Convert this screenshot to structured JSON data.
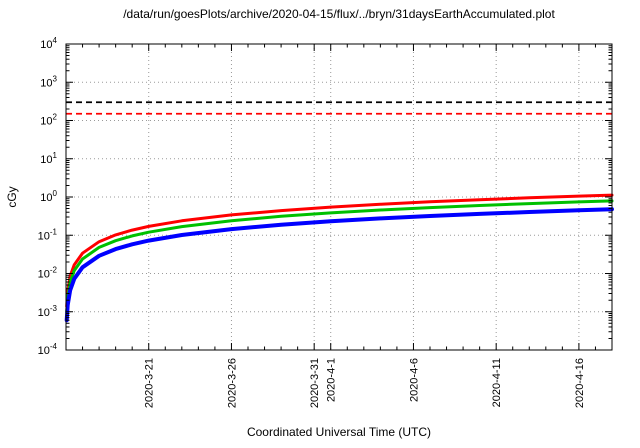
{
  "chart_data": {
    "type": "line",
    "title": "/data/run/goesPlots/archive/2020-04-15/flux/../bryn/31daysEarthAccumulated.plot",
    "xlabel": "Coordinated Universal Time (UTC)",
    "ylabel": "cGy",
    "y_scale": "log",
    "y_range_exponents": [
      -4,
      4
    ],
    "x_unit": "days since 2020-03-16",
    "x_range": [
      0,
      33
    ],
    "grid": "dotted major",
    "legend": "none",
    "x_ticks": [
      {
        "day": 5,
        "label": "2020-3-21"
      },
      {
        "day": 10,
        "label": "2020-3-26"
      },
      {
        "day": 15,
        "label": "2020-3-31"
      },
      {
        "day": 16,
        "label": "2020-4-1"
      },
      {
        "day": 21,
        "label": "2020-4-6"
      },
      {
        "day": 26,
        "label": "2020-4-11"
      },
      {
        "day": 31,
        "label": "2020-4-16"
      }
    ],
    "x": [
      0.04,
      0.1,
      0.25,
      0.5,
      1,
      2,
      3,
      4,
      5,
      7,
      10,
      13,
      16,
      19,
      22,
      25,
      28,
      31,
      33
    ],
    "series": [
      {
        "name": "red",
        "color": "#ff0000",
        "width": 3,
        "values": [
          0.0014,
          0.0034,
          0.0085,
          0.017,
          0.034,
          0.068,
          0.102,
          0.136,
          0.17,
          0.238,
          0.34,
          0.442,
          0.544,
          0.646,
          0.748,
          0.85,
          0.952,
          1.054,
          1.12
        ]
      },
      {
        "name": "green",
        "color": "#00c000",
        "width": 3,
        "values": [
          0.001,
          0.0024,
          0.006,
          0.012,
          0.024,
          0.048,
          0.072,
          0.096,
          0.12,
          0.168,
          0.24,
          0.312,
          0.384,
          0.456,
          0.528,
          0.6,
          0.672,
          0.744,
          0.79
        ]
      },
      {
        "name": "blue",
        "color": "#0000ff",
        "width": 4,
        "values": [
          0.0006,
          0.0015,
          0.0036,
          0.0073,
          0.0145,
          0.029,
          0.0435,
          0.058,
          0.0725,
          0.1015,
          0.145,
          0.1885,
          0.232,
          0.2755,
          0.319,
          0.3625,
          0.406,
          0.4495,
          0.48
        ]
      }
    ],
    "thresholds": [
      {
        "name": "threshold-black",
        "color": "#000000",
        "value": 300,
        "style": "dashed"
      },
      {
        "name": "threshold-red",
        "color": "#ff0000",
        "value": 150,
        "style": "dashed"
      }
    ]
  }
}
